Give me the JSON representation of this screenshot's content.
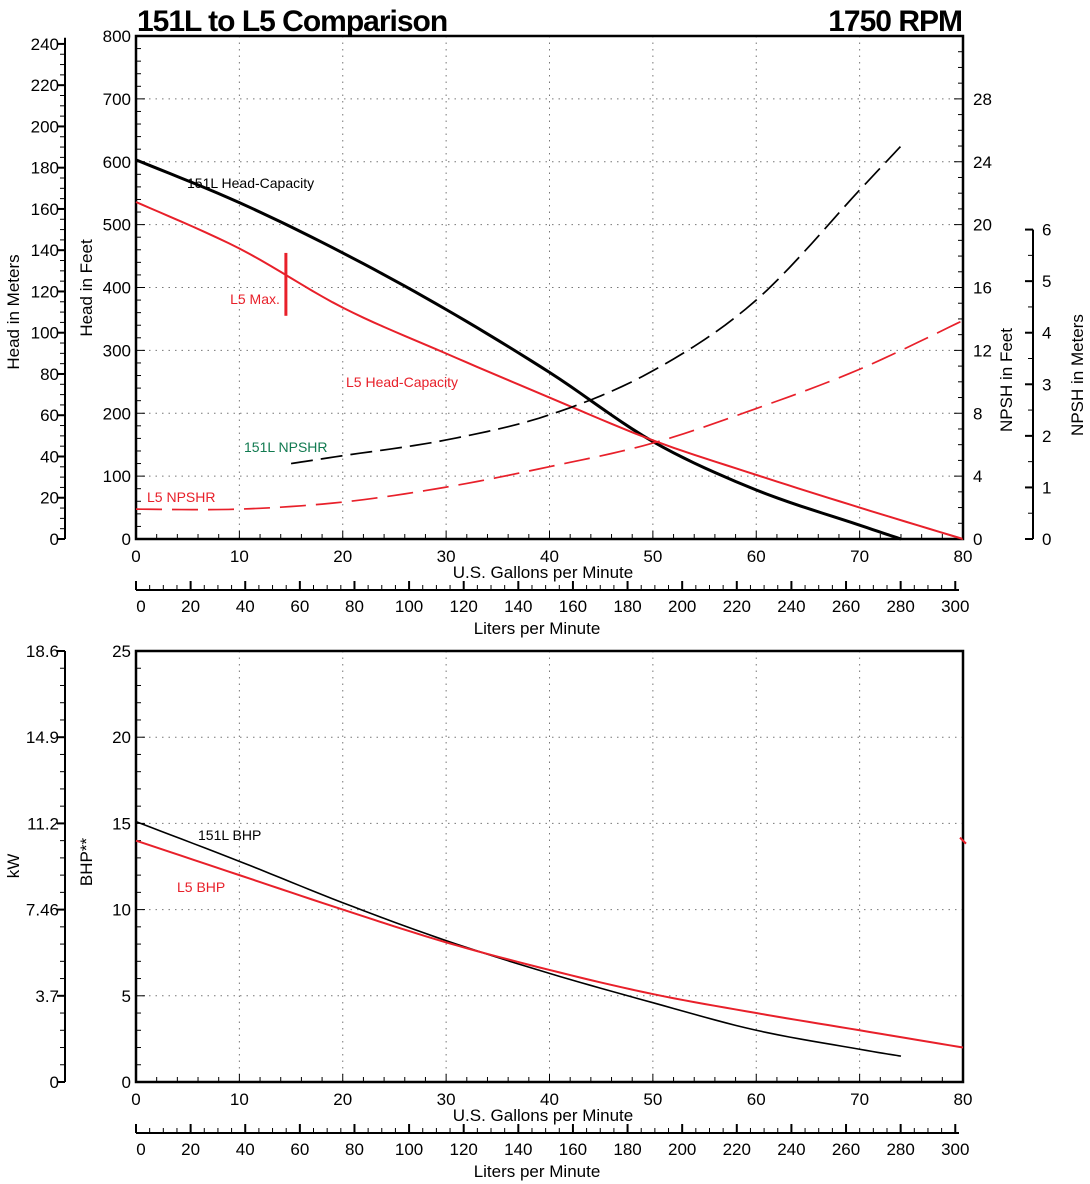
{
  "title": "151L to L5 Comparison",
  "speed": "1750 RPM",
  "colors": {
    "l151": "#000000",
    "l5": "#e8202a",
    "npshr_label_151L": "#117a50",
    "grid": "#888888"
  },
  "chart_data": [
    {
      "type": "line",
      "title": "151L to L5 Comparison",
      "xlabel": "U.S. Gallons per Minute",
      "xlim": [
        0,
        80
      ],
      "xticks": [
        0,
        10,
        20,
        30,
        40,
        50,
        60,
        70,
        80
      ],
      "x2label": "Liters per Minute",
      "x2ticks": [
        0,
        20,
        40,
        60,
        80,
        100,
        120,
        140,
        160,
        180,
        200,
        220,
        240,
        260,
        280,
        300
      ],
      "ylabel": "Head in Feet",
      "ylim": [
        0,
        800
      ],
      "yticks": [
        0,
        100,
        200,
        300,
        400,
        500,
        600,
        700,
        800
      ],
      "y_meters_label": "Head in Meters",
      "y_meters_ticks": [
        0,
        20,
        40,
        60,
        80,
        100,
        120,
        140,
        160,
        180,
        200,
        220,
        240
      ],
      "y_npsh_ft_label": "NPSH in Feet",
      "y_npsh_ft_lim": [
        0,
        32
      ],
      "y_npsh_ft_ticks": [
        0,
        4,
        8,
        12,
        16,
        20,
        24,
        28
      ],
      "y_npsh_m_label": "NPSH in Meters",
      "y_npsh_m_ticks": [
        0,
        1,
        2,
        3,
        4,
        5,
        6
      ],
      "grid": true,
      "series": [
        {
          "name": "151L Head-Capacity",
          "axis": "head_ft",
          "style": "solid",
          "color": "#000000",
          "x": [
            0,
            10,
            20,
            30,
            40,
            50,
            60,
            70,
            74
          ],
          "y": [
            603,
            535,
            455,
            365,
            265,
            155,
            78,
            22,
            0
          ]
        },
        {
          "name": "L5 Head-Capacity",
          "axis": "head_ft",
          "style": "solid",
          "color": "#e8202a",
          "x": [
            0,
            10,
            20,
            30,
            40,
            50,
            60,
            70,
            80
          ],
          "y": [
            536,
            462,
            368,
            295,
            225,
            157,
            102,
            50,
            0
          ]
        },
        {
          "name": "151L NPSHR",
          "axis": "npsh_ft",
          "style": "dashed",
          "color": "#000000",
          "x": [
            15,
            20,
            30,
            40,
            50,
            60,
            70,
            74
          ],
          "y": [
            4.8,
            5.3,
            6.3,
            7.9,
            10.7,
            15.2,
            22.2,
            25
          ]
        },
        {
          "name": "L5 NPSHR",
          "axis": "npsh_ft",
          "style": "dashed",
          "color": "#e8202a",
          "x": [
            0,
            10,
            20,
            30,
            40,
            50,
            60,
            70,
            80
          ],
          "y": [
            1.9,
            1.9,
            2.35,
            3.3,
            4.6,
            6.1,
            8.3,
            10.8,
            13.9
          ]
        }
      ],
      "annotations": [
        {
          "text": "L5 Max.",
          "x": 14.5,
          "y_range": [
            355,
            455
          ],
          "color": "#e8202a"
        }
      ]
    },
    {
      "type": "line",
      "xlabel": "U.S. Gallons per Minute",
      "xlim": [
        0,
        80
      ],
      "xticks": [
        0,
        10,
        20,
        30,
        40,
        50,
        60,
        70,
        80
      ],
      "x2label": "Liters per Minute",
      "x2ticks": [
        0,
        20,
        40,
        60,
        80,
        100,
        120,
        140,
        160,
        180,
        200,
        220,
        240,
        260,
        280,
        300
      ],
      "ylabel": "BHP**",
      "ylim": [
        0,
        25
      ],
      "yticks": [
        0,
        5,
        10,
        15,
        20,
        25
      ],
      "y_kw_label": "kW",
      "y_kw_ticks": [
        "0",
        "3.7",
        "7.46",
        "11.2",
        "14.9",
        "18.6"
      ],
      "grid": true,
      "series": [
        {
          "name": "151L BHP",
          "style": "solid",
          "color": "#000000",
          "x": [
            0,
            10,
            20,
            30,
            40,
            50,
            60,
            70,
            74
          ],
          "y": [
            15.1,
            12.8,
            10.4,
            8.2,
            6.3,
            4.6,
            3.0,
            1.9,
            1.5
          ]
        },
        {
          "name": "L5 BHP",
          "style": "solid",
          "color": "#e8202a",
          "x": [
            0,
            10,
            20,
            30,
            40,
            50,
            60,
            70,
            80
          ],
          "y": [
            14.0,
            12.0,
            10.0,
            8.1,
            6.5,
            5.1,
            4.0,
            3.0,
            2.0
          ]
        }
      ]
    }
  ]
}
